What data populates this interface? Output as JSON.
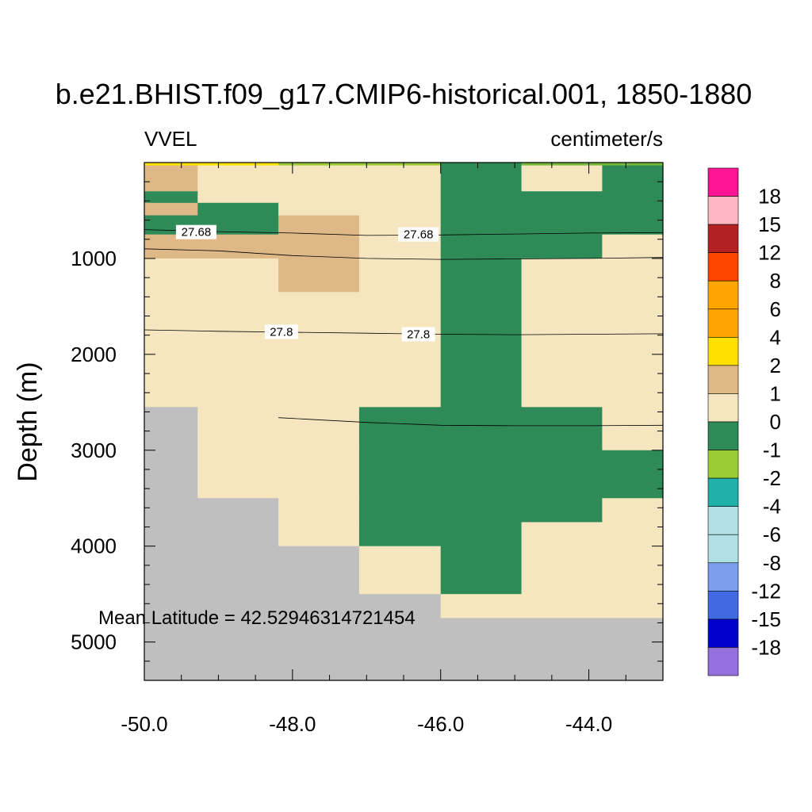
{
  "chart_data": {
    "type": "heatmap",
    "title": "b.e21.BHIST.f09_g17.CMIP6-historical.001, 1850-1880",
    "left_label": "VVEL",
    "right_label": "centimeter/s",
    "xlabel": "",
    "ylabel": "Depth (m)",
    "xlim": [
      -50.0,
      -43.0
    ],
    "ylim": [
      0,
      5400
    ],
    "x_ticks": [
      -50.0,
      -48.0,
      -46.0,
      -44.0
    ],
    "x_tick_labels": [
      "-50.0",
      "-48.0",
      "-46.0",
      "-44.0"
    ],
    "y_ticks": [
      1000,
      2000,
      3000,
      4000,
      5000
    ],
    "y_tick_labels": [
      "1000",
      "2000",
      "3000",
      "4000",
      "5000"
    ],
    "annotation": "Mean Latitude = 42.52946314721454",
    "missing_color": "#bfbfbf",
    "colorbar": {
      "labels": [
        "18",
        "15",
        "12",
        "8",
        "6",
        "4",
        "2",
        "1",
        "0",
        "-1",
        "-2",
        "-4",
        "-6",
        "-8",
        "-12",
        "-15",
        "-18"
      ],
      "colors": [
        "#ff1493",
        "#ffb6c1",
        "#b22222",
        "#ff4500",
        "#ffa500",
        "#ffa500",
        "#ffe000",
        "#deb887",
        "#f5e6c0",
        "#2e8b57",
        "#9acd32",
        "#20b2aa",
        "#b0e0e6",
        "#b0e0e6",
        "#7b9eef",
        "#4169e1",
        "#0000cd",
        "#9370db"
      ]
    },
    "longitudes": [
      -50.0,
      -49.28,
      -48.19,
      -47.1,
      -46.0,
      -44.91,
      -43.82,
      -43.0
    ],
    "depth_levels": [
      0,
      30,
      300,
      420,
      550,
      750,
      1000,
      1350,
      2550,
      3000,
      3500,
      3750,
      4000,
      4500,
      4750,
      5400
    ],
    "cells": [
      [
        4,
        4,
        5,
        5,
        8,
        9,
        9
      ],
      [
        1,
        0,
        0,
        0,
        2,
        3,
        2
      ],
      [
        2,
        0,
        0,
        0,
        2,
        2,
        2
      ],
      [
        1,
        2,
        0,
        3,
        2,
        2,
        2
      ],
      [
        2,
        2,
        1,
        3,
        2,
        2,
        2
      ],
      [
        1,
        1,
        1,
        3,
        2,
        2,
        3
      ],
      [
        3,
        3,
        1,
        3,
        2,
        3,
        3
      ],
      [
        3,
        3,
        3,
        3,
        2,
        3,
        3
      ],
      [
        6,
        3,
        3,
        2,
        2,
        2,
        3
      ],
      [
        6,
        3,
        3,
        2,
        2,
        2,
        2
      ],
      [
        6,
        6,
        3,
        2,
        2,
        2,
        3
      ],
      [
        6,
        6,
        3,
        2,
        2,
        3,
        3
      ],
      [
        6,
        6,
        6,
        3,
        2,
        3,
        3
      ],
      [
        6,
        6,
        6,
        6,
        3,
        3,
        3
      ],
      [
        6,
        6,
        6,
        6,
        6,
        6,
        6
      ]
    ],
    "cell_classes": [
      "#f5e6c0",
      "#deb887",
      "#2e8b57",
      "#f5e6c0",
      "#ffe000",
      "#9acd32",
      "#bfbfbf",
      "#4a8fd4",
      "#2e8b57",
      "#78b83a"
    ],
    "contours": [
      {
        "label": "27.68",
        "points": [
          [
            -50.0,
            700
          ],
          [
            -49.0,
            720
          ],
          [
            -48.0,
            735
          ],
          [
            -47.0,
            760
          ],
          [
            -46.0,
            755
          ],
          [
            -45.0,
            745
          ],
          [
            -44.0,
            735
          ],
          [
            -43.0,
            730
          ]
        ],
        "label_positions": [
          [
            -49.3,
            725
          ],
          [
            -46.3,
            750
          ]
        ]
      },
      {
        "label": "",
        "points": [
          [
            -50.0,
            900
          ],
          [
            -49.0,
            920
          ],
          [
            -48.0,
            970
          ],
          [
            -47.0,
            1000
          ],
          [
            -46.0,
            1010
          ],
          [
            -45.0,
            1005
          ],
          [
            -44.0,
            1000
          ],
          [
            -43.0,
            990
          ]
        ],
        "label_positions": []
      },
      {
        "label": "27.8",
        "points": [
          [
            -50.0,
            1745
          ],
          [
            -49.0,
            1760
          ],
          [
            -48.0,
            1770
          ],
          [
            -47.0,
            1780
          ],
          [
            -46.0,
            1790
          ],
          [
            -45.0,
            1795
          ],
          [
            -44.0,
            1790
          ],
          [
            -43.0,
            1785
          ]
        ],
        "label_positions": [
          [
            -48.15,
            1765
          ],
          [
            -46.3,
            1790
          ]
        ]
      },
      {
        "label": "",
        "points": [
          [
            -48.19,
            2660
          ],
          [
            -47.0,
            2710
          ],
          [
            -46.0,
            2740
          ],
          [
            -45.0,
            2745
          ],
          [
            -44.0,
            2745
          ],
          [
            -43.0,
            2740
          ]
        ],
        "label_positions": []
      }
    ]
  }
}
